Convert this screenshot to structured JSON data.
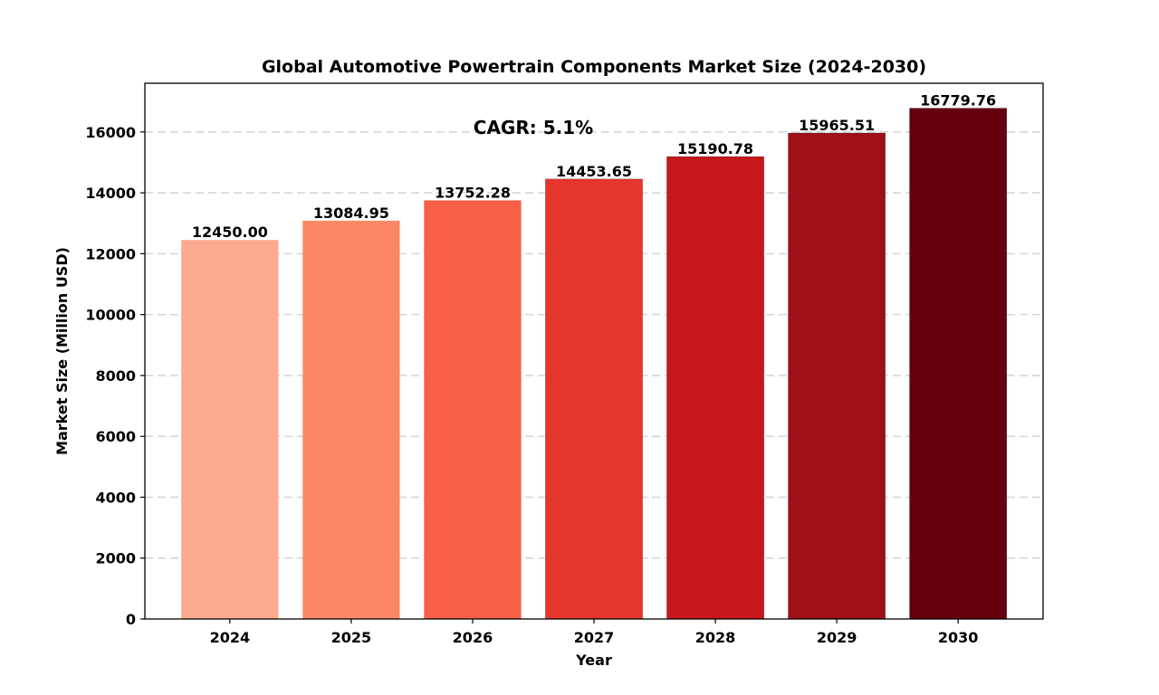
{
  "chart_data": {
    "type": "bar",
    "title": "Global Automotive Powertrain Components Market Size (2024-2030)",
    "xlabel": "Year",
    "ylabel": "Market Size (Million USD)",
    "categories": [
      "2024",
      "2025",
      "2026",
      "2027",
      "2028",
      "2029",
      "2030"
    ],
    "values": [
      12450.0,
      13084.95,
      13752.28,
      14453.65,
      15190.78,
      15965.51,
      16779.76
    ],
    "value_labels": [
      "12450.00",
      "13084.95",
      "13752.28",
      "14453.65",
      "15190.78",
      "15965.51",
      "16779.76"
    ],
    "colors": [
      "#fcaa8d",
      "#fc8767",
      "#f75f46",
      "#e4362c",
      "#c5171d",
      "#9e0f18",
      "#67000d"
    ],
    "ylim": [
      0,
      17600
    ],
    "yticks": [
      0,
      2000,
      4000,
      6000,
      8000,
      10000,
      12000,
      14000,
      16000
    ],
    "grid": "y-dashed",
    "annotation": "CAGR: 5.1%",
    "annotation_anchor": {
      "x": 2026.5,
      "y": 16000
    }
  }
}
